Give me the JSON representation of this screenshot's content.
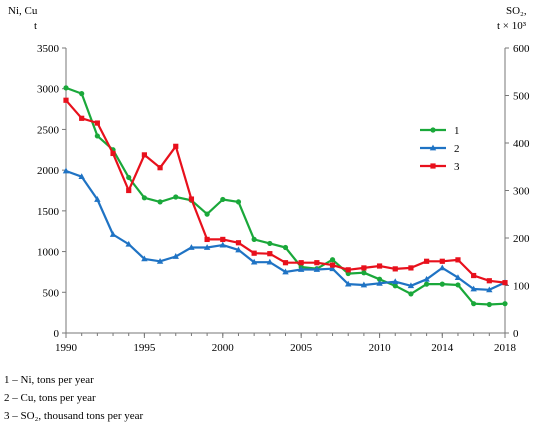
{
  "chart_data": {
    "type": "line",
    "left_axis_label_line1": "Ni, Cu",
    "left_axis_label_line2": "t",
    "right_axis_label_line1": "SO₂,",
    "right_axis_label_line2": "t × 10³",
    "xlim": [
      1990,
      2018
    ],
    "y_left_lim": [
      0,
      3500
    ],
    "y_right_lim": [
      0,
      600
    ],
    "x_ticks": [
      1990,
      1995,
      2000,
      2005,
      2010,
      2014,
      2018
    ],
    "y_left_ticks": [
      0,
      500,
      1000,
      1500,
      2000,
      2500,
      3000,
      3500
    ],
    "y_right_ticks": [
      0,
      100,
      200,
      300,
      400,
      500,
      600
    ],
    "grid": false,
    "legend_position": "right",
    "series": [
      {
        "name": "1",
        "axis": "left",
        "color": "#1aa83a",
        "marker": "circle",
        "x": [
          1990,
          1991,
          1992,
          1993,
          1994,
          1995,
          1996,
          1997,
          1998,
          1999,
          2000,
          2001,
          2002,
          2003,
          2004,
          2005,
          2006,
          2007,
          2008,
          2009,
          2010,
          2011,
          2012,
          2013,
          2014,
          2015,
          2016,
          2017,
          2018
        ],
        "values": [
          3010,
          2940,
          2420,
          2250,
          1910,
          1660,
          1610,
          1670,
          1630,
          1460,
          1640,
          1610,
          1150,
          1100,
          1050,
          810,
          790,
          900,
          730,
          740,
          660,
          580,
          480,
          600,
          600,
          590,
          360,
          350,
          360
        ]
      },
      {
        "name": "2",
        "axis": "left",
        "color": "#1f73c4",
        "marker": "triangle",
        "x": [
          1990,
          1991,
          1992,
          1993,
          1994,
          1995,
          1996,
          1997,
          1998,
          1999,
          2000,
          2001,
          2002,
          2003,
          2004,
          2005,
          2006,
          2007,
          2008,
          2009,
          2010,
          2011,
          2012,
          2013,
          2014,
          2015,
          2016,
          2017,
          2018
        ],
        "values": [
          1990,
          1920,
          1640,
          1210,
          1090,
          910,
          880,
          940,
          1050,
          1050,
          1080,
          1020,
          870,
          870,
          750,
          780,
          780,
          790,
          600,
          590,
          610,
          630,
          580,
          660,
          800,
          680,
          540,
          530,
          620
        ]
      },
      {
        "name": "3",
        "axis": "right",
        "color": "#e8101c",
        "marker": "square",
        "x": [
          1990,
          1991,
          1992,
          1993,
          1994,
          1995,
          1996,
          1997,
          1998,
          1999,
          2000,
          2001,
          2002,
          2003,
          2004,
          2005,
          2006,
          2007,
          2008,
          2009,
          2010,
          2011,
          2012,
          2013,
          2014,
          2015,
          2016,
          2017,
          2018
        ],
        "values": [
          490,
          452,
          442,
          378,
          300,
          375,
          348,
          393,
          282,
          197,
          197,
          190,
          168,
          167,
          148,
          148,
          148,
          143,
          133,
          137,
          141,
          135,
          137,
          151,
          151,
          154,
          121,
          110,
          106
        ]
      }
    ]
  },
  "notes": [
    "1 – Ni, tons per year",
    "2 – Cu, tons per year",
    "3 – SO₂, thousand tons per year"
  ]
}
